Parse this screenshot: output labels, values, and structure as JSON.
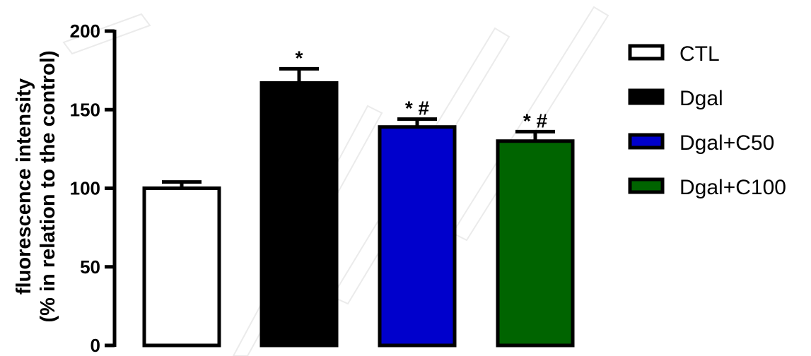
{
  "chart_data": {
    "type": "bar",
    "title": "",
    "xlabel": "",
    "ylabel": "fluorescence intensity\n(% in relation to the control)",
    "ylabel_lines": [
      "fluorescence intensity",
      "(% in relation to the control)"
    ],
    "ylim": [
      0,
      200
    ],
    "yticks": [
      0,
      50,
      100,
      150,
      200
    ],
    "ytick_labels": [
      "0",
      "50",
      "100",
      "150",
      "200"
    ],
    "categories": [
      "CTL",
      "Dgal",
      "Dgal+C50",
      "Dgal+C100"
    ],
    "values": [
      100,
      167,
      139,
      130
    ],
    "errors": [
      4,
      9,
      5,
      6
    ],
    "annotations": [
      "",
      "*",
      "*#",
      "*#"
    ],
    "colors": [
      "#ffffff",
      "#000000",
      "#0000cc",
      "#006400"
    ],
    "outline": "#000000",
    "grid": false,
    "legend": {
      "placement": "right",
      "entries": [
        {
          "label": "CTL",
          "color": "#ffffff"
        },
        {
          "label": "Dgal",
          "color": "#000000"
        },
        {
          "label": "Dgal+C50",
          "color": "#0000cc"
        },
        {
          "label": "Dgal+C100",
          "color": "#006400"
        }
      ]
    }
  }
}
